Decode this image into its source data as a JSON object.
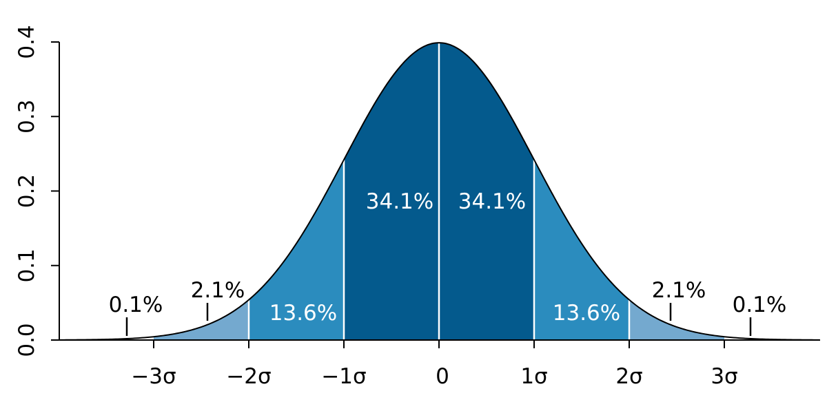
{
  "chart_data": {
    "type": "area",
    "title": "",
    "xlabel": "",
    "ylabel": "",
    "function": "standard normal probability density",
    "xlim": [
      -4,
      4
    ],
    "ylim": [
      0,
      0.4
    ],
    "grid": false,
    "x_ticks": [
      {
        "value": -3,
        "label": "−3σ"
      },
      {
        "value": -2,
        "label": "−2σ"
      },
      {
        "value": -1,
        "label": "−1σ"
      },
      {
        "value": 0,
        "label": "0"
      },
      {
        "value": 1,
        "label": "1σ"
      },
      {
        "value": 2,
        "label": "2σ"
      },
      {
        "value": 3,
        "label": "3σ"
      }
    ],
    "y_ticks": [
      {
        "value": 0.0,
        "label": "0.0"
      },
      {
        "value": 0.1,
        "label": "0.1"
      },
      {
        "value": 0.2,
        "label": "0.2"
      },
      {
        "value": 0.3,
        "label": "0.3"
      },
      {
        "value": 0.4,
        "label": "0.4"
      }
    ],
    "regions": [
      {
        "from": -3,
        "to": -2,
        "label": "2.1%",
        "color": "#74a9cf"
      },
      {
        "from": -2,
        "to": -1,
        "label": "13.6%",
        "color": "#2b8cbe"
      },
      {
        "from": -1,
        "to": 0,
        "label": "34.1%",
        "color": "#045a8d"
      },
      {
        "from": 0,
        "to": 1,
        "label": "34.1%",
        "color": "#045a8d"
      },
      {
        "from": 1,
        "to": 2,
        "label": "13.6%",
        "color": "#2b8cbe"
      },
      {
        "from": 2,
        "to": 3,
        "label": "2.1%",
        "color": "#74a9cf"
      }
    ],
    "tail_annotations": [
      {
        "side": "left",
        "label": "0.1%",
        "x": -3.3
      },
      {
        "side": "right",
        "label": "0.1%",
        "x": 3.3
      }
    ]
  }
}
